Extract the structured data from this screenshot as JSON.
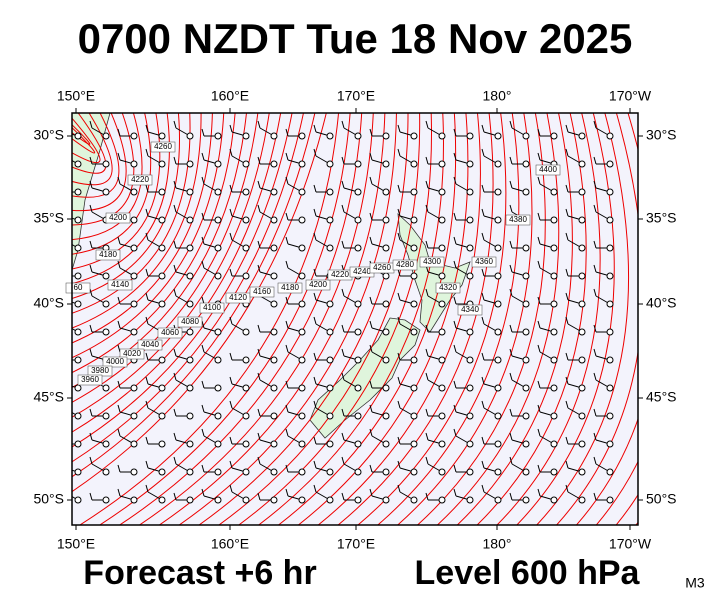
{
  "header": {
    "title": "0700 NZDT Tue 18 Nov 2025"
  },
  "map": {
    "lon_labels": [
      "150°E",
      "160°E",
      "170°E",
      "180°",
      "170°W"
    ],
    "lat_labels": [
      "30°S",
      "35°S",
      "40°S",
      "45°S",
      "50°S"
    ],
    "contour_labels": [
      "4260",
      "4220",
      "4200",
      "4180",
      "60",
      "4140",
      "4100",
      "4080",
      "4060",
      "4040",
      "4020",
      "4000",
      "3980",
      "3960",
      "4120",
      "4160",
      "4180",
      "4200",
      "4220",
      "4240",
      "4260",
      "4280",
      "4300",
      "4320",
      "4340",
      "4360",
      "4380",
      "4400"
    ]
  },
  "footer": {
    "forecast": "Forecast +6 hr",
    "level": "Level 600 hPa",
    "code": "M3"
  }
}
